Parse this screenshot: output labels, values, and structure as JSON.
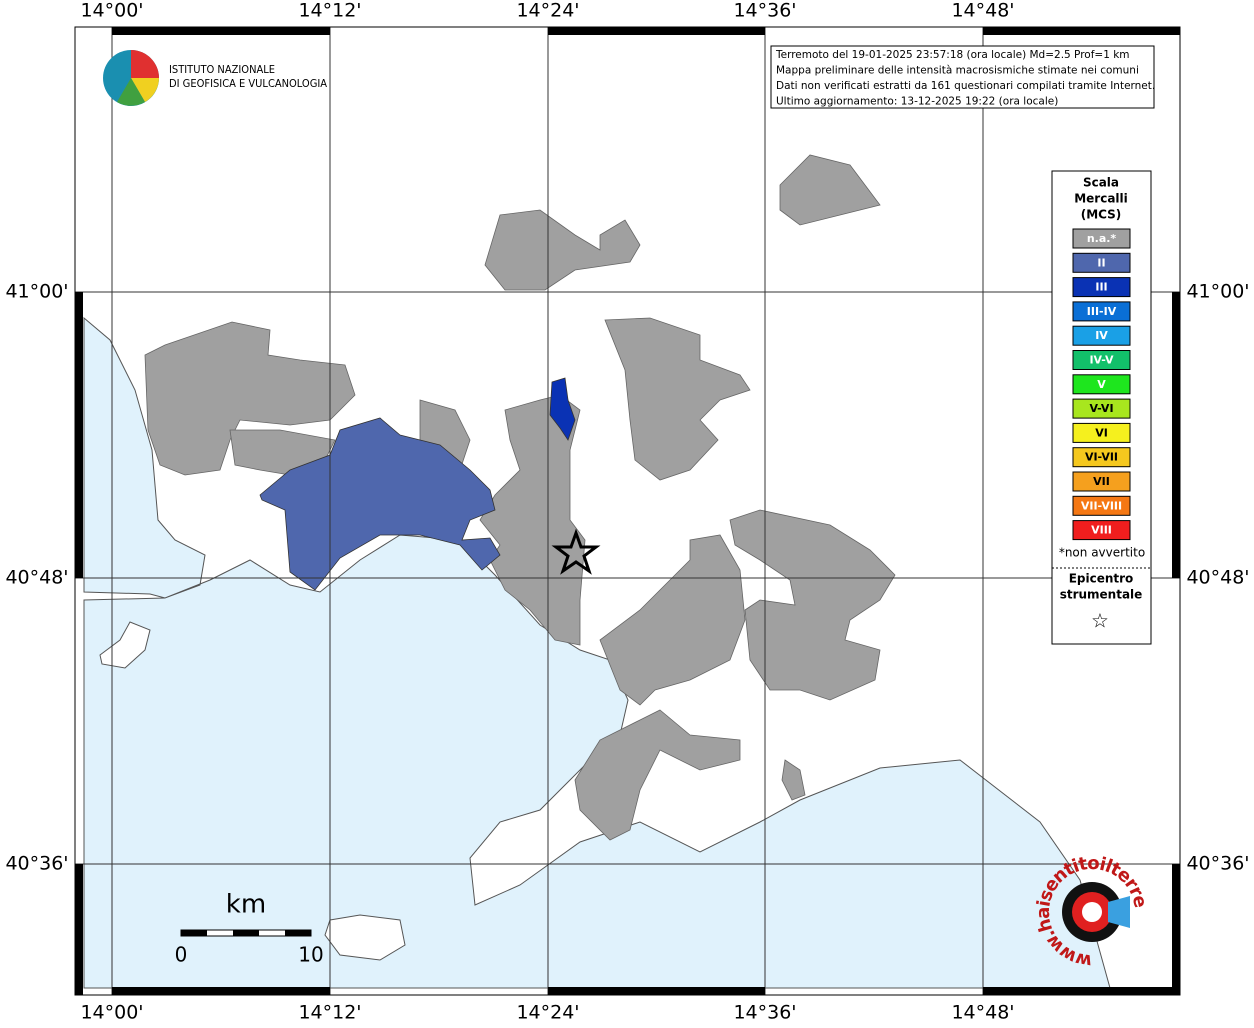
{
  "map": {
    "lon_labels": [
      "14°00'",
      "14°12'",
      "14°24'",
      "14°36'",
      "14°48'"
    ],
    "lat_labels": [
      "41°00'",
      "40°48'",
      "40°36'"
    ],
    "info": [
      "Terremoto del 19-01-2025 23:57:18 (ora locale) Md=2.5 Prof=1 km",
      "Mappa preliminare delle intensità macrosismiche stimate nei comuni",
      "Dati non verificati estratti da 161 questionari compilati tramite Internet.",
      "Ultimo aggiornamento: 13-12-2025 19:22 (ora locale)"
    ],
    "logo": [
      "ISTITUTO NAZIONALE",
      "DI GEOFISICA E VULCANOLOGIA"
    ],
    "legend": {
      "title": [
        "Scala",
        "Mercalli",
        "(MCS)"
      ],
      "items": [
        {
          "label": "n.a.*",
          "color": "#a0a0a0"
        },
        {
          "label": "II",
          "color": "#4f67ad"
        },
        {
          "label": "III",
          "color": "#0a32b4"
        },
        {
          "label": "III-IV",
          "color": "#0a6fd6"
        },
        {
          "label": "IV",
          "color": "#1aa0e6"
        },
        {
          "label": "IV-V",
          "color": "#12c06a"
        },
        {
          "label": "V",
          "color": "#1ee61e"
        },
        {
          "label": "V-VI",
          "color": "#a8e61e"
        },
        {
          "label": "VI",
          "color": "#f5f01e"
        },
        {
          "label": "VI-VII",
          "color": "#f5c81e"
        },
        {
          "label": "VII",
          "color": "#f5a01e"
        },
        {
          "label": "VII-VIII",
          "color": "#f57814"
        },
        {
          "label": "VIII",
          "color": "#f01e1e"
        }
      ],
      "note": "*non avvertito",
      "epicenter": [
        "Epicentro",
        "strumentale"
      ],
      "epicenter_symbol": "☆"
    },
    "scale_bar": {
      "unit": "km",
      "labels": [
        0,
        10
      ]
    },
    "watermark": "www.haisentitoilterremoto.it"
  }
}
